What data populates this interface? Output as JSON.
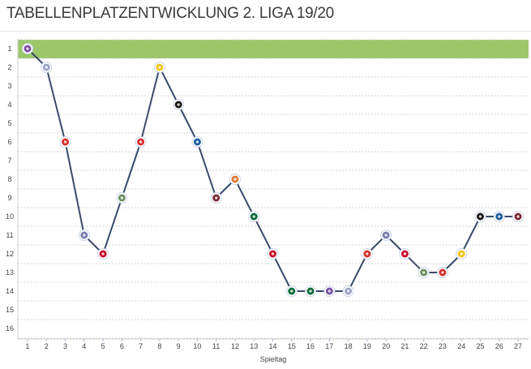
{
  "title": "TABELLENPLATZENTWICKLUNG 2. LIGA 19/20",
  "chart_data": {
    "type": "line",
    "title": "TABELLENPLATZENTWICKLUNG 2. LIGA 19/20",
    "xlabel": "Spieltag",
    "ylabel": "",
    "x": [
      1,
      2,
      3,
      4,
      5,
      6,
      7,
      8,
      9,
      10,
      11,
      12,
      13,
      14,
      15,
      16,
      17,
      18,
      19,
      20,
      21,
      22,
      23,
      24,
      25,
      26,
      27
    ],
    "xlim": [
      1,
      27
    ],
    "ylim": [
      16,
      1
    ],
    "y_inverted": true,
    "grid": true,
    "highlight_band": {
      "from": 0.5,
      "to": 1.5,
      "color": "#9bc76a"
    },
    "series": [
      {
        "name": "",
        "color": "#3a4a6b",
        "values": [
          1,
          2,
          6,
          11,
          12,
          9,
          6,
          2,
          4,
          6,
          9,
          8,
          10,
          12,
          14,
          14,
          14,
          14,
          12,
          11,
          12,
          13,
          13,
          12,
          10,
          10,
          10
        ]
      }
    ],
    "opponent_badge_colors": [
      "#7b4fa3",
      "#9aa6c9",
      "#d6312c",
      "#7a7fb0",
      "#c8102e",
      "#6d8f5e",
      "#d6312c",
      "#f0c419",
      "#1a1a1a",
      "#1f5da0",
      "#7b2a3a",
      "#e07a3a",
      "#0d6b3c",
      "#c8102e",
      "#0d6b3c",
      "#0d6b3c",
      "#7b4fa3",
      "#9aa6c9",
      "#d6312c",
      "#7a7fb0",
      "#c8102e",
      "#6d8f5e",
      "#d6312c",
      "#f0c419",
      "#1a1a1a",
      "#1f5da0",
      "#7b2a3a"
    ]
  }
}
